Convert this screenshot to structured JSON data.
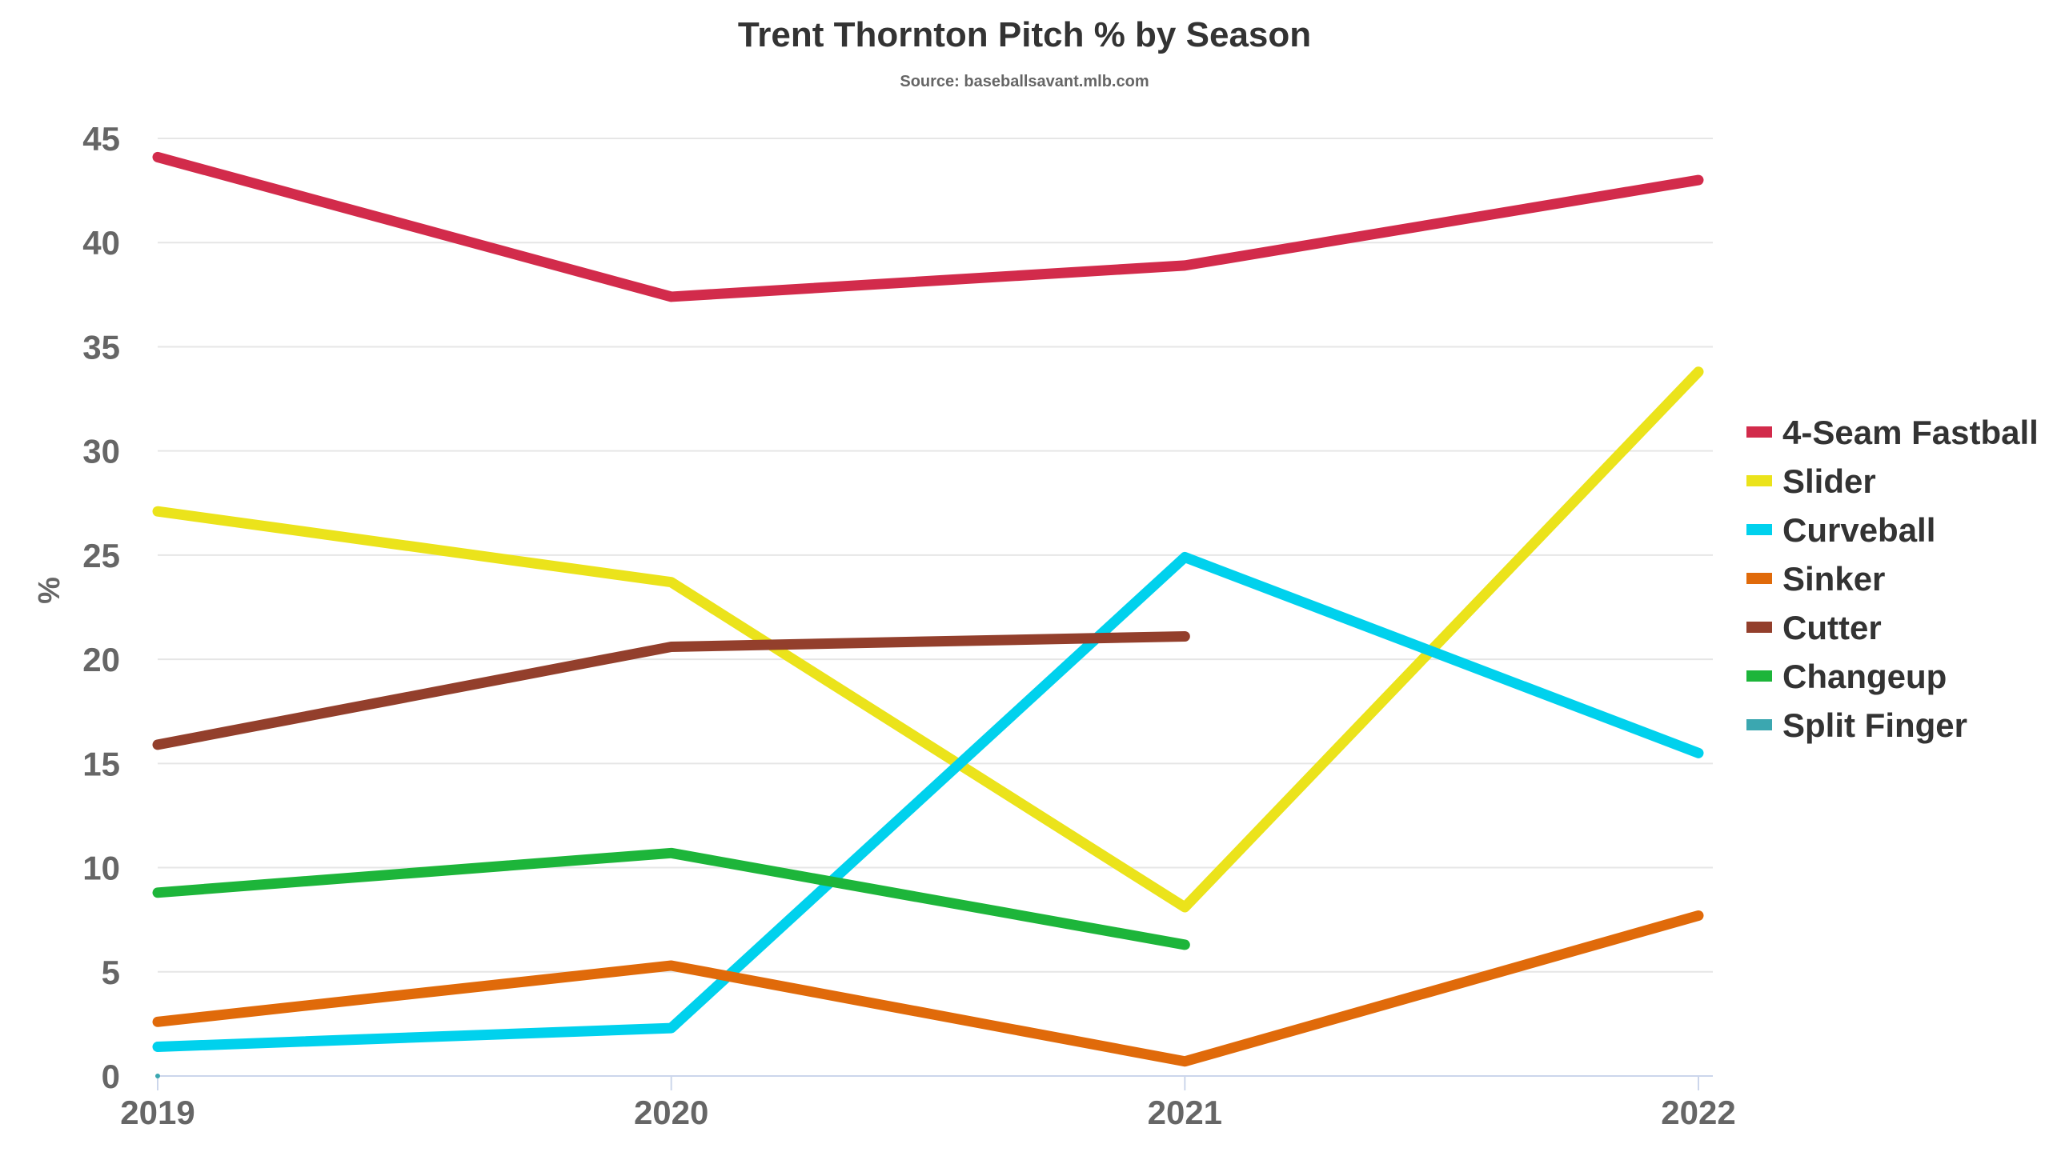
{
  "chart_data": {
    "type": "line",
    "title": "Trent Thornton Pitch % by Season",
    "subtitle": "Source: baseballsavant.mlb.com",
    "ylabel": "%",
    "xlabel": "",
    "categories": [
      "2019",
      "2020",
      "2021",
      "2022"
    ],
    "ylim": [
      0,
      45
    ],
    "yticks": [
      0,
      5,
      10,
      15,
      20,
      25,
      30,
      35,
      40,
      45
    ],
    "grid": true,
    "legend_position": "right",
    "series": [
      {
        "name": "4-Seam Fastball",
        "color": "#d22b4b",
        "values": [
          44.1,
          37.4,
          38.9,
          43.0
        ]
      },
      {
        "name": "Slider",
        "color": "#ebe31b",
        "values": [
          27.1,
          23.7,
          8.1,
          33.8
        ]
      },
      {
        "name": "Curveball",
        "color": "#00d1ed",
        "values": [
          1.4,
          2.3,
          24.9,
          15.5
        ]
      },
      {
        "name": "Sinker",
        "color": "#e06a0a",
        "values": [
          2.6,
          5.3,
          0.7,
          7.7
        ]
      },
      {
        "name": "Cutter",
        "color": "#933f2c",
        "values": [
          15.9,
          20.6,
          21.1,
          null
        ]
      },
      {
        "name": "Changeup",
        "color": "#1db53a",
        "values": [
          8.8,
          10.7,
          6.3,
          null
        ]
      },
      {
        "name": "Split Finger",
        "color": "#3ba7b0",
        "values": [
          0.0,
          null,
          null,
          null
        ]
      }
    ]
  }
}
